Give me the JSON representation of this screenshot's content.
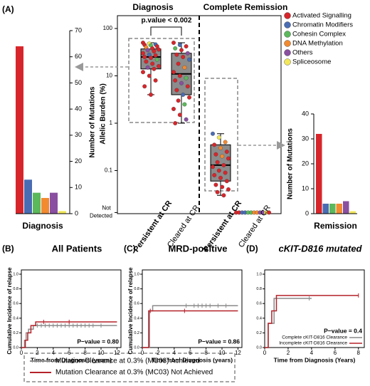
{
  "chart_data": [
    {
      "type": "bar",
      "panel": "(A)",
      "title": "Diagnosis",
      "y_label": "Number of Mutations",
      "axis_side": "right",
      "categories": [
        "Activated Signalling",
        "Chromatin Modifiers",
        "Cohesin Complex",
        "DNA Methylation",
        "Others",
        "Spliceosome"
      ],
      "values": [
        64,
        13,
        8,
        6,
        8,
        1
      ],
      "colors": [
        "#d7262b",
        "#4a6cb3",
        "#5bb85b",
        "#f28a30",
        "#8a4fa0",
        "#f2e85a"
      ],
      "ylim": [
        0,
        70
      ],
      "yticks": [
        0,
        10,
        20,
        30,
        40,
        50,
        60,
        70
      ]
    },
    {
      "type": "box",
      "titles": [
        "Diagnosis",
        "Complete Remission"
      ],
      "y_label": "Allelic Burden (%)",
      "log_scale": true,
      "annotation": "p.value < 0.002",
      "categories": [
        "Persistent at CR",
        "Cleared at CR",
        "Persistent at CR",
        "Cleared at CR"
      ],
      "category_colors": [
        "#b5222a",
        "#000000",
        "#b5222a",
        "#000000"
      ],
      "ylim": [
        0.01,
        150
      ],
      "yticks": [
        {
          "value": 0.013,
          "label": "Not Detected"
        },
        {
          "value": 0.1,
          "label": "0.1"
        },
        1,
        10,
        100
      ],
      "legend": [
        {
          "name": "Activated Signalling",
          "color": "#d7262b"
        },
        {
          "name": "Chromatin Modifiers",
          "color": "#4a6cb3"
        },
        {
          "name": "Cohesin Complex",
          "color": "#5bb85b"
        },
        {
          "name": "DNA Methylation",
          "color": "#f28a30"
        },
        {
          "name": "Others",
          "color": "#8a4fa0"
        },
        {
          "name": "Spliceosome",
          "color": "#f2e85a"
        }
      ],
      "groups": [
        {
          "box": {
            "whisker_low": 4,
            "q1": 14,
            "median": 25,
            "q3": 37,
            "whisker_high": 50
          },
          "points": {
            "values": [
              50,
              48,
              46,
              45,
              44,
              42,
              40,
              38,
              36,
              35,
              33,
              30,
              28,
              27,
              25,
              24,
              22,
              20,
              18,
              16,
              15,
              14,
              12,
              10,
              8,
              6,
              4
            ],
            "classes": [
              0,
              5,
              1,
              0,
              2,
              0,
              3,
              0,
              0,
              4,
              0,
              0,
              1,
              0,
              0,
              0,
              2,
              0,
              0,
              0,
              4,
              0,
              0,
              0,
              0,
              0,
              0
            ]
          }
        },
        {
          "box": {
            "whisker_low": 1,
            "q1": 4,
            "median": 11,
            "q3": 30,
            "whisker_high": 50
          },
          "points": {
            "values": [
              50,
              45,
              42,
              38,
              35,
              30,
              28,
              25,
              22,
              18,
              15,
              12,
              10,
              9,
              8,
              7,
              6,
              5,
              4,
              3.5,
              3,
              2.5,
              2,
              1.5,
              1.2,
              1
            ],
            "classes": [
              0,
              1,
              0,
              2,
              0,
              4,
              0,
              0,
              1,
              0,
              3,
              0,
              0,
              2,
              0,
              4,
              0,
              0,
              1,
              0,
              0,
              2,
              0,
              0,
              4,
              0
            ]
          }
        },
        {
          "box": {
            "whisker_low": 0.03,
            "q1": 0.06,
            "median": 0.13,
            "q3": 0.35,
            "whisker_high": 0.6
          },
          "points": {
            "values": [
              0.6,
              0.5,
              0.4,
              0.35,
              0.3,
              0.25,
              0.22,
              0.2,
              0.18,
              0.15,
              0.13,
              0.12,
              0.1,
              0.09,
              0.08,
              0.07,
              0.06,
              0.05,
              0.045,
              0.04,
              0.035,
              0.03
            ],
            "classes": [
              1,
              5,
              3,
              0,
              3,
              0,
              0,
              3,
              0,
              0,
              0,
              0,
              0,
              0,
              0,
              0,
              0,
              0,
              0,
              0,
              0,
              0
            ]
          }
        },
        {
          "points": {
            "values": [
              0.013,
              0.013,
              0.013,
              0.013,
              0.013,
              0.013,
              0.013,
              0.013,
              0.013,
              0.013,
              0.013,
              0.013
            ],
            "classes": [
              0,
              0,
              1,
              1,
              2,
              2,
              3,
              3,
              4,
              4,
              5,
              0
            ]
          }
        }
      ]
    },
    {
      "type": "bar",
      "title": "Remission",
      "y_label": "Number of Mutations",
      "axis_side": "left",
      "categories": [
        "Activated Signalling",
        "Chromatin Modifiers",
        "Cohesin Complex",
        "DNA Methylation",
        "Others",
        "Spliceosome"
      ],
      "values": [
        32,
        4,
        4,
        4,
        5,
        1
      ],
      "colors": [
        "#d7262b",
        "#4a6cb3",
        "#5bb85b",
        "#f28a30",
        "#8a4fa0",
        "#f2e85a"
      ],
      "ylim": [
        0,
        40
      ],
      "yticks": [
        0,
        10,
        20,
        30,
        40
      ]
    },
    {
      "type": "step",
      "panel": "(B)",
      "title": "All Patients",
      "y_label": "Cumulative Incidence of relapse",
      "x_label": "Time from Diagnosis (years)",
      "annotation": "P−value = 0.80",
      "xlim": [
        0,
        12.5
      ],
      "xticks": [
        0,
        2,
        4,
        6,
        8,
        10,
        12
      ],
      "ylim": [
        0,
        1
      ],
      "yticks": [
        {
          "value": 0,
          "label": "0.0"
        },
        {
          "value": 0.2,
          "label": "0.2"
        },
        {
          "value": 0.4,
          "label": "0.4"
        },
        {
          "value": 0.6,
          "label": "0.6"
        },
        {
          "value": 0.8,
          "label": "0.8"
        },
        {
          "value": 1,
          "label": "1.0"
        }
      ],
      "series": [
        {
          "name": "Mutation Clearance at 0.3% (MC03) Achieved",
          "color": "#8a8a8a",
          "x": [
            0,
            0.4,
            0.6,
            0.9,
            1.5,
            12
          ],
          "values": [
            0,
            0.1,
            0.2,
            0.25,
            0.3,
            0.3
          ],
          "censored": [
            2,
            2.5,
            3,
            3.5,
            4,
            4.5,
            5,
            5.5,
            6,
            6.5,
            7,
            7.5,
            8,
            8.5,
            9,
            10
          ]
        },
        {
          "name": "Mutation Clearance at 0.3% (MC03) Not Achieved",
          "color": "#b5222a",
          "x": [
            0,
            0.5,
            0.8,
            1.2,
            1.8,
            12
          ],
          "values": [
            0,
            0.1,
            0.2,
            0.3,
            0.35,
            0.35
          ],
          "censored": [
            2.8,
            6
          ]
        }
      ]
    },
    {
      "type": "step",
      "panel": "(C)",
      "title": "MRD-positive",
      "y_label": "Cumulative Incidence of relapse",
      "x_label": "Time from Diagnosis (years)",
      "annotation": "P−value = 0.86",
      "xlim": [
        0,
        12.5
      ],
      "xticks": [
        0,
        2,
        4,
        6,
        8,
        10,
        12
      ],
      "ylim": [
        0,
        1
      ],
      "yticks": [
        {
          "value": 0,
          "label": "0.0"
        },
        {
          "value": 0.2,
          "label": "0.2"
        },
        {
          "value": 0.4,
          "label": "0.4"
        },
        {
          "value": 0.6,
          "label": "0.6"
        },
        {
          "value": 0.8,
          "label": "0.8"
        },
        {
          "value": 1,
          "label": "1.0"
        }
      ],
      "series": [
        {
          "color": "#8a8a8a",
          "x": [
            0,
            0.9,
            1.3,
            12
          ],
          "values": [
            0,
            0.5,
            0.57,
            0.57
          ],
          "censored": [
            5.5,
            6.5,
            7,
            7.5,
            8,
            8.5,
            9.5,
            10.5
          ]
        },
        {
          "color": "#b5222a",
          "x": [
            0,
            0.8,
            12
          ],
          "values": [
            0,
            0.5,
            0.5
          ],
          "censored": [
            1,
            5.3
          ]
        }
      ]
    },
    {
      "type": "step",
      "panel": "(D)",
      "title": "cKIT-D816 mutated",
      "x_label": "Time from Diagnosis (Years)",
      "annotation": "P−value = 0.4",
      "xlim": [
        0,
        8.5
      ],
      "xticks": [
        0,
        2,
        4,
        6,
        8
      ],
      "ylim": [
        0,
        1
      ],
      "yticks": [
        {
          "value": 0,
          "label": "0.0"
        },
        {
          "value": 0.2,
          "label": "0.2"
        },
        {
          "value": 0.4,
          "label": "0.4"
        },
        {
          "value": 0.6,
          "label": "0.6"
        },
        {
          "value": 0.8,
          "label": "0.8"
        },
        {
          "value": 1,
          "label": "1.0"
        }
      ],
      "series": [
        {
          "name": "Complete cKIT-D816 Clearance",
          "color": "#8a8a8a",
          "x": [
            0,
            0.3,
            0.8,
            4
          ],
          "values": [
            0,
            0.33,
            0.67,
            0.67
          ],
          "censored": [
            3.8
          ]
        },
        {
          "name": "Incomplete cKIT-D816 Clearance",
          "color": "#b5222a",
          "x": [
            0,
            0.3,
            0.6,
            1,
            8
          ],
          "values": [
            0,
            0.33,
            0.5,
            0.71,
            0.71
          ],
          "censored": [
            8
          ]
        }
      ]
    }
  ]
}
